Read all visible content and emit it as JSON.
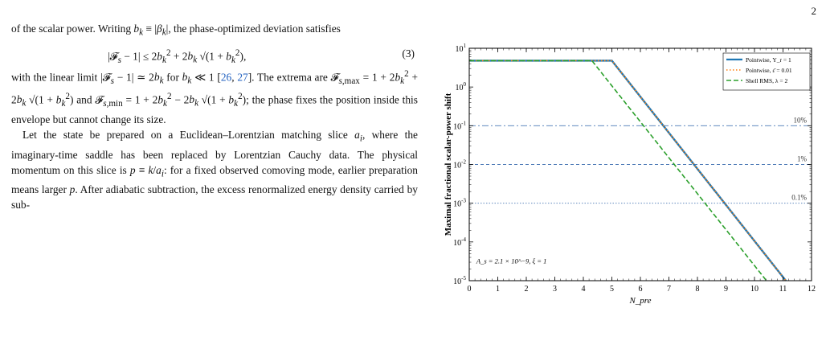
{
  "page_number": "2",
  "text": {
    "p1": "of the scalar power. Writing b_k ≡ |β_k|, the phase-optimized deviation satisfies",
    "eq3": "|𝓕_s − 1| ≤ 2b_k² + 2b_k √(1 + b_k²),",
    "eq3_num": "(3)",
    "p2": "with the linear limit |𝓕_s − 1| ≃ 2b_k for b_k ≪ 1 [26, 27]. The extrema are 𝓕_s,max = 1 + 2b_k² + 2b_k √(1 + b_k²) and 𝓕_s,min = 1 + 2b_k² − 2b_k √(1 + b_k²); the phase fixes the position inside this envelope but cannot change its size.",
    "p3": "Let the state be prepared on a Euclidean–Lorentzian matching slice a_i, where the imaginary-time saddle has been replaced by Lorentzian Cauchy data. The physical momentum on this slice is p ≡ k/a_i: for a fixed observed comoving mode, earlier preparation means larger p. After adiabatic subtraction, the excess renormalized energy density carried by sub-"
  },
  "chart_data": {
    "type": "line",
    "xlabel": "N_pre",
    "ylabel": "Maximal fractional scalar-power shift",
    "xlim": [
      0,
      12
    ],
    "ylim_log10": [
      -5,
      1
    ],
    "yscale": "log",
    "x_ticks": [
      0,
      1,
      2,
      3,
      4,
      5,
      6,
      7,
      8,
      9,
      10,
      11,
      12
    ],
    "y_ticks": [
      "10^-5",
      "10^-4",
      "10^-3",
      "10^-2",
      "10^-1",
      "10^0",
      "10^1"
    ],
    "legend_position": "top-right",
    "series": [
      {
        "name": "Pointwise, Υ_r = 1",
        "color": "#1f77b4",
        "style": "solid",
        "x": [
          0,
          5.0,
          11.1
        ],
        "y_log10": [
          0.68,
          0.68,
          -5.0
        ]
      },
      {
        "name": "Pointwise, ε̄ = 0.01",
        "color": "#ff7f0e",
        "style": "dotted",
        "x": [
          0,
          5.0,
          11.1
        ],
        "y_log10": [
          0.68,
          0.68,
          -5.0
        ]
      },
      {
        "name": "Shell RMS, λ = 2",
        "color": "#2ca02c",
        "style": "dashed",
        "x": [
          0,
          4.3,
          10.42
        ],
        "y_log10": [
          0.68,
          0.68,
          -5.0
        ]
      }
    ],
    "reference_lines": [
      {
        "label": "10%",
        "y_log10": -1,
        "style": "dashdot",
        "color": "#4a78b5"
      },
      {
        "label": "1%",
        "y_log10": -2,
        "style": "dashed",
        "color": "#4a78b5"
      },
      {
        "label": "0.1%",
        "y_log10": -3,
        "style": "dotted",
        "color": "#4a78b5"
      }
    ],
    "annotation": "A_s = 2.1 × 10^−9, ξ = 1"
  }
}
